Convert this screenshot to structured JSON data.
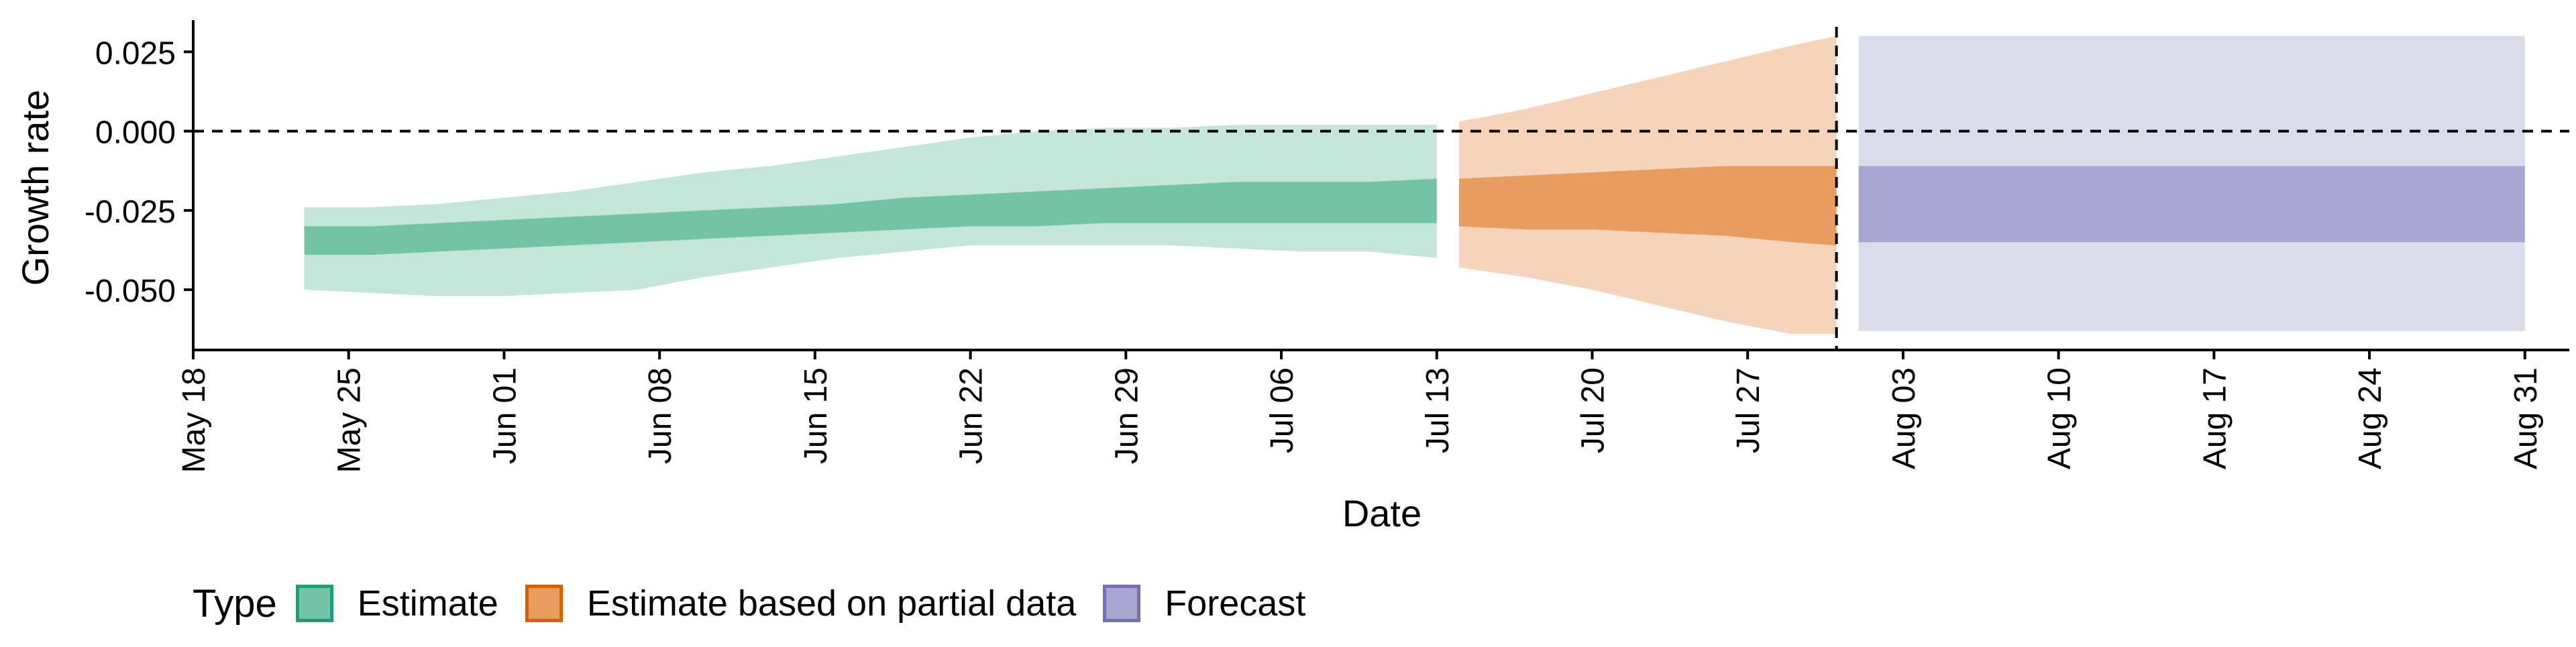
{
  "chart_data": {
    "type": "area",
    "xlabel": "Date",
    "ylabel": "Growth rate",
    "x_domain": [
      "2020-05-18",
      "2020-09-02"
    ],
    "ylim": [
      -0.069,
      0.035
    ],
    "y_ticks": [
      0.025,
      0.0,
      -0.025,
      -0.05
    ],
    "y_tick_labels": [
      "0.025",
      "0.000",
      "-0.025",
      "-0.050"
    ],
    "x_ticks": [
      "2020-05-18",
      "2020-05-25",
      "2020-06-01",
      "2020-06-08",
      "2020-06-15",
      "2020-06-22",
      "2020-06-29",
      "2020-07-06",
      "2020-07-13",
      "2020-07-20",
      "2020-07-27",
      "2020-08-03",
      "2020-08-10",
      "2020-08-17",
      "2020-08-24",
      "2020-08-31"
    ],
    "x_tick_labels": [
      "May 18",
      "May 25",
      "Jun 01",
      "Jun 08",
      "Jun 15",
      "Jun 22",
      "Jun 29",
      "Jul 06",
      "Jul 13",
      "Jul 20",
      "Jul 27",
      "Aug 03",
      "Aug 10",
      "Aug 17",
      "Aug 24",
      "Aug 31"
    ],
    "reference_lines": {
      "horizontal_y": 0.0,
      "vertical_date": "2020-07-31"
    },
    "grid": false,
    "legend": {
      "title": "Type",
      "position": "bottom-left",
      "items": [
        {
          "label": "Estimate",
          "fill": "#73c3a6",
          "border": "#1b9e77"
        },
        {
          "label": "Estimate based on partial data",
          "fill": "#e89c5e",
          "border": "#d95f02"
        },
        {
          "label": "Forecast",
          "fill": "#a8a5d0",
          "border": "#7570b3"
        }
      ]
    },
    "series": [
      {
        "name": "Estimate",
        "fill_inner": "#73c3a6",
        "fill_outer": "#c4e6da",
        "x": [
          "2020-05-23",
          "2020-05-26",
          "2020-05-29",
          "2020-06-01",
          "2020-06-04",
          "2020-06-07",
          "2020-06-10",
          "2020-06-13",
          "2020-06-16",
          "2020-06-19",
          "2020-06-22",
          "2020-06-25",
          "2020-06-28",
          "2020-07-01",
          "2020-07-04",
          "2020-07-07",
          "2020-07-10",
          "2020-07-13"
        ],
        "lower90": [
          -0.05,
          -0.051,
          -0.052,
          -0.052,
          -0.051,
          -0.05,
          -0.046,
          -0.043,
          -0.04,
          -0.038,
          -0.036,
          -0.036,
          -0.036,
          -0.036,
          -0.037,
          -0.038,
          -0.038,
          -0.04
        ],
        "lower50": [
          -0.039,
          -0.039,
          -0.038,
          -0.037,
          -0.036,
          -0.035,
          -0.034,
          -0.033,
          -0.032,
          -0.031,
          -0.03,
          -0.03,
          -0.029,
          -0.029,
          -0.029,
          -0.029,
          -0.029,
          -0.029
        ],
        "upper50": [
          -0.03,
          -0.03,
          -0.029,
          -0.028,
          -0.027,
          -0.026,
          -0.025,
          -0.024,
          -0.023,
          -0.021,
          -0.02,
          -0.019,
          -0.018,
          -0.017,
          -0.016,
          -0.016,
          -0.016,
          -0.015
        ],
        "upper90": [
          -0.024,
          -0.024,
          -0.023,
          -0.021,
          -0.019,
          -0.016,
          -0.013,
          -0.011,
          -0.008,
          -0.005,
          -0.002,
          0.0,
          0.001,
          0.001,
          0.002,
          0.002,
          0.002,
          0.002
        ]
      },
      {
        "name": "Estimate based on partial data",
        "fill_inner": "#e89c5e",
        "fill_outer": "#f6d4bb",
        "x": [
          "2020-07-14",
          "2020-07-17",
          "2020-07-20",
          "2020-07-23",
          "2020-07-26",
          "2020-07-29",
          "2020-07-31"
        ],
        "lower90": [
          -0.043,
          -0.046,
          -0.05,
          -0.055,
          -0.06,
          -0.064,
          -0.064
        ],
        "lower50": [
          -0.03,
          -0.031,
          -0.031,
          -0.032,
          -0.033,
          -0.035,
          -0.036
        ],
        "upper50": [
          -0.015,
          -0.014,
          -0.013,
          -0.012,
          -0.011,
          -0.011,
          -0.011
        ],
        "upper90": [
          0.003,
          0.007,
          0.012,
          0.017,
          0.022,
          0.027,
          0.03
        ]
      },
      {
        "name": "Forecast",
        "fill_inner": "#a8a5d0",
        "fill_outer": "#dcdbec",
        "x": [
          "2020-08-01",
          "2020-08-31"
        ],
        "lower90": [
          -0.063,
          -0.063
        ],
        "lower50": [
          -0.035,
          -0.035
        ],
        "upper50": [
          -0.011,
          -0.011
        ],
        "upper90": [
          0.03,
          0.03
        ]
      }
    ]
  }
}
